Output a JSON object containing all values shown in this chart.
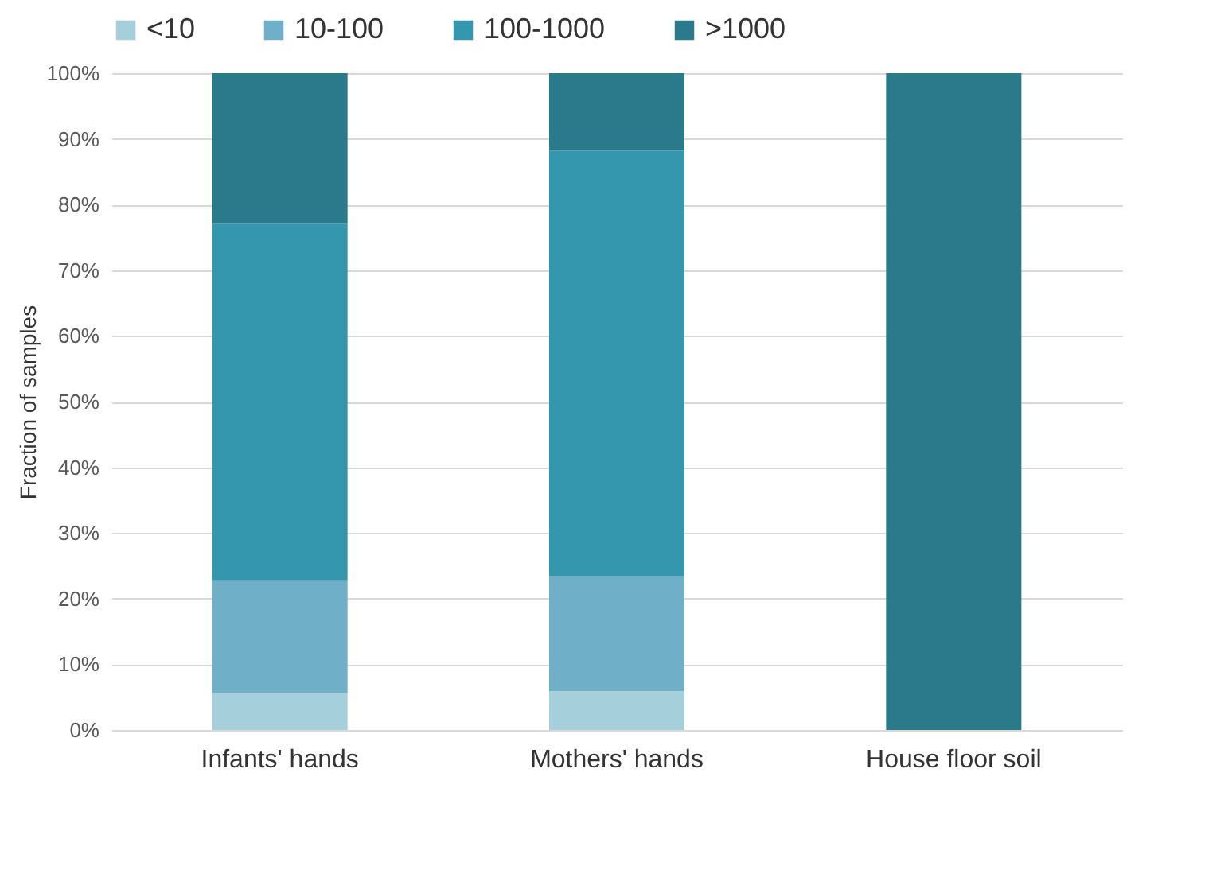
{
  "chart_data": {
    "type": "bar",
    "stacked": true,
    "ylabel": "Fraction of samples",
    "legend": "top",
    "grid": "y",
    "categories": [
      "Infants' hands",
      "Mothers' hands",
      "House floor soil"
    ],
    "series": [
      {
        "name": "<10",
        "color": "#a6cfdc",
        "values": [
          5.7,
          5.9,
          0
        ]
      },
      {
        "name": "10-100",
        "color": "#6fb0c8",
        "values": [
          17.1,
          17.6,
          0
        ]
      },
      {
        "name": "100-1000",
        "color": "#3597ae",
        "values": [
          54.3,
          64.7,
          0
        ]
      },
      {
        "name": ">1000",
        "color": "#2a7a8b",
        "values": [
          22.9,
          11.8,
          100
        ]
      }
    ],
    "ylim": [
      0,
      100
    ],
    "yticks": [
      {
        "value": 0,
        "label": "0%"
      },
      {
        "value": 10,
        "label": "10%"
      },
      {
        "value": 20,
        "label": "20%"
      },
      {
        "value": 30,
        "label": "30%"
      },
      {
        "value": 40,
        "label": "40%"
      },
      {
        "value": 50,
        "label": "50%"
      },
      {
        "value": 60,
        "label": "60%"
      },
      {
        "value": 70,
        "label": "70%"
      },
      {
        "value": 80,
        "label": "80%"
      },
      {
        "value": 90,
        "label": "90%"
      },
      {
        "value": 100,
        "label": "100%"
      }
    ]
  }
}
